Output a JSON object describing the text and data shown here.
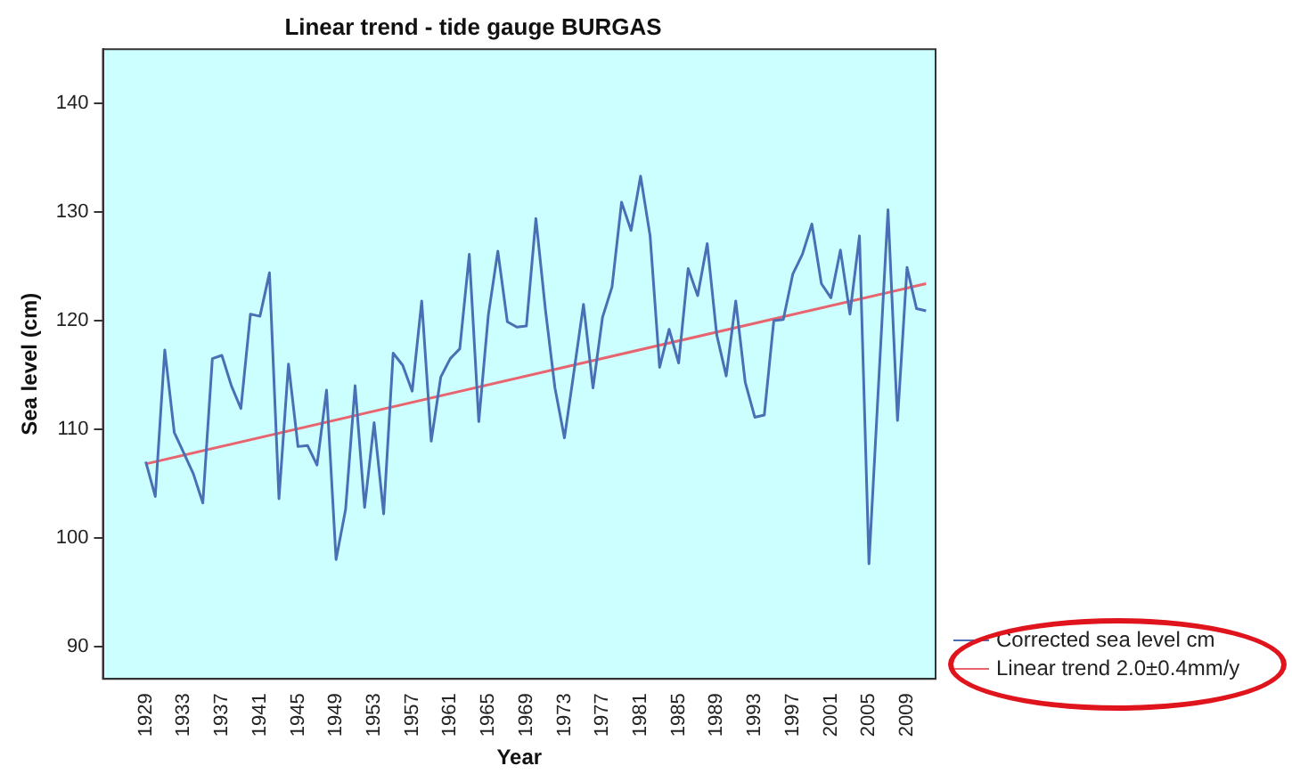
{
  "chart_data": {
    "type": "line",
    "title": "Linear trend - tide gauge BURGAS",
    "xlabel": "Year",
    "ylabel": "Sea level (cm)",
    "xlim": [
      1924.5,
      2012
    ],
    "xticks": [
      1929,
      1933,
      1937,
      1941,
      1945,
      1949,
      1953,
      1957,
      1961,
      1965,
      1969,
      1973,
      1977,
      1981,
      1985,
      1989,
      1993,
      1997,
      2001,
      2005,
      2009
    ],
    "ylim": [
      87,
      145
    ],
    "yticks": [
      90,
      100,
      110,
      120,
      130,
      140
    ],
    "grid": false,
    "legend": "bottom right",
    "marker": "none",
    "line_style": "solid",
    "series": [
      {
        "name": "Corrected sea level cm",
        "color": "#4a6fb5",
        "x": [
          1929,
          1930,
          1931,
          1932,
          1933,
          1934,
          1935,
          1936,
          1937,
          1938,
          1939,
          1940,
          1941,
          1942,
          1943,
          1944,
          1945,
          1946,
          1947,
          1948,
          1949,
          1950,
          1951,
          1952,
          1953,
          1954,
          1955,
          1956,
          1957,
          1958,
          1959,
          1960,
          1961,
          1962,
          1963,
          1964,
          1965,
          1966,
          1967,
          1968,
          1969,
          1970,
          1971,
          1972,
          1973,
          1974,
          1975,
          1976,
          1977,
          1978,
          1979,
          1980,
          1981,
          1982,
          1983,
          1984,
          1985,
          1986,
          1987,
          1988,
          1989,
          1990,
          1991,
          1992,
          1993,
          1994,
          1995,
          1996,
          1997,
          1998,
          1999,
          2000,
          2001,
          2002,
          2003,
          2004,
          2005,
          2006,
          2007,
          2008,
          2009,
          2010,
          2011
        ],
        "values": [
          107.0,
          103.8,
          117.3,
          109.7,
          107.8,
          105.9,
          103.2,
          116.5,
          116.8,
          114.0,
          111.9,
          120.6,
          120.4,
          124.4,
          103.6,
          116.0,
          108.4,
          108.5,
          106.7,
          113.6,
          98.0,
          102.6,
          114.0,
          102.8,
          110.6,
          102.2,
          117.0,
          115.9,
          113.5,
          121.8,
          108.9,
          114.8,
          116.5,
          117.4,
          126.1,
          110.7,
          120.5,
          126.4,
          119.9,
          119.4,
          119.5,
          129.4,
          121.0,
          113.8,
          109.2,
          115.3,
          121.5,
          113.8,
          120.3,
          123.1,
          130.9,
          128.3,
          133.3,
          127.8,
          115.7,
          119.2,
          116.1,
          124.8,
          122.3,
          127.1,
          118.7,
          114.9,
          121.8,
          114.3,
          111.1,
          111.3,
          120.0,
          120.1,
          124.3,
          126.1,
          128.9,
          123.4,
          122.1,
          126.5,
          120.6,
          127.8,
          97.6,
          114.0,
          130.2,
          110.8,
          124.9,
          121.1,
          120.9
        ]
      },
      {
        "name": "Linear trend 2.0±0.4mm/y",
        "color": "#e8646e",
        "x": [
          1929,
          2011
        ],
        "values": [
          106.8,
          123.4
        ]
      }
    ]
  }
}
